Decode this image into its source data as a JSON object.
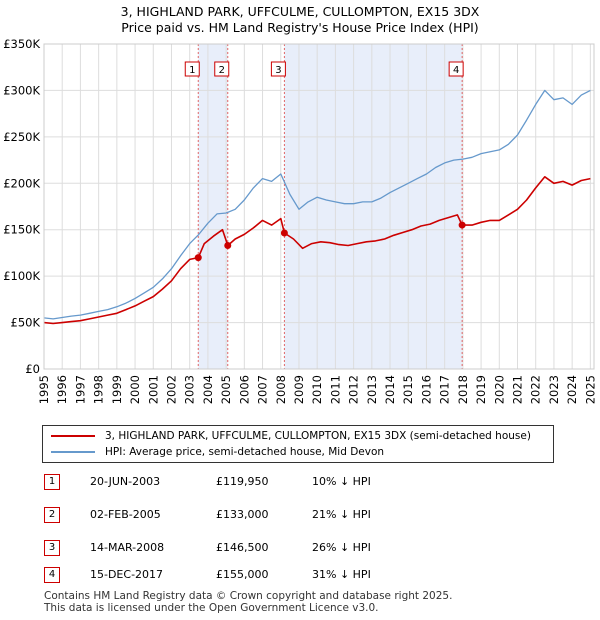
{
  "header": {
    "title_line1": "3, HIGHLAND PARK, UFFCULME, CULLOMPTON, EX15 3DX",
    "title_line2": "Price paid vs. HM Land Registry's House Price Index (HPI)"
  },
  "colors": {
    "red": "#cc0000",
    "blue": "#6699cc",
    "shade": "#e8eefa",
    "grid": "#dddddd",
    "vline": "#e06666"
  },
  "legend": {
    "property_label": "3, HIGHLAND PARK, UFFCULME, CULLOMPTON, EX15 3DX (semi-detached house)",
    "hpi_label": "HPI: Average price, semi-detached house, Mid Devon"
  },
  "transactions": [
    {
      "num": "1",
      "date": "20-JUN-2003",
      "price": "£119,950",
      "hpi_diff": "10% ↓ HPI"
    },
    {
      "num": "2",
      "date": "02-FEB-2005",
      "price": "£133,000",
      "hpi_diff": "21% ↓ HPI"
    },
    {
      "num": "3",
      "date": "14-MAR-2008",
      "price": "£146,500",
      "hpi_diff": "26% ↓ HPI"
    },
    {
      "num": "4",
      "date": "15-DEC-2017",
      "price": "£155,000",
      "hpi_diff": "31% ↓ HPI"
    }
  ],
  "footer": {
    "line1": "Contains HM Land Registry data © Crown copyright and database right 2025.",
    "line2": "This data is licensed under the Open Government Licence v3.0."
  },
  "chart_data": {
    "type": "line",
    "title": "3, HIGHLAND PARK, UFFCULME, CULLOMPTON, EX15 3DX — Price paid vs. HM Land Registry's House Price Index (HPI)",
    "xlabel": "",
    "ylabel": "",
    "xlim": [
      1995,
      2025.2
    ],
    "ylim": [
      0,
      350000
    ],
    "y_ticks": [
      0,
      50000,
      100000,
      150000,
      200000,
      250000,
      300000,
      350000
    ],
    "y_tick_labels": [
      "£0",
      "£50K",
      "£100K",
      "£150K",
      "£200K",
      "£250K",
      "£300K",
      "£350K"
    ],
    "x_ticks": [
      1995,
      1996,
      1997,
      1998,
      1999,
      2000,
      2001,
      2002,
      2003,
      2004,
      2005,
      2006,
      2007,
      2008,
      2009,
      2010,
      2011,
      2012,
      2013,
      2014,
      2015,
      2016,
      2017,
      2018,
      2019,
      2020,
      2021,
      2022,
      2023,
      2024,
      2025
    ],
    "x_tick_labels": [
      "1995",
      "1996",
      "1997",
      "1998",
      "1999",
      "2000",
      "2001",
      "2002",
      "2003",
      "2004",
      "2005",
      "2006",
      "2007",
      "2008",
      "2009",
      "2010",
      "2011",
      "2012",
      "2013",
      "2014",
      "2015",
      "2016",
      "2017",
      "2018",
      "2019",
      "2020",
      "2021",
      "2022",
      "2023",
      "2024",
      "2025"
    ],
    "shaded_periods": [
      [
        2003.47,
        2005.09
      ],
      [
        2008.2,
        2017.96
      ]
    ],
    "series": [
      {
        "name": "HPI: Average price, semi-detached house, Mid Devon",
        "color": "#6699cc",
        "x": [
          1995,
          1995.5,
          1996,
          1996.5,
          1997,
          1997.5,
          1998,
          1998.5,
          1999,
          1999.5,
          2000,
          2000.5,
          2001,
          2001.5,
          2002,
          2002.5,
          2003,
          2003.5,
          2004,
          2004.5,
          2005,
          2005.5,
          2006,
          2006.5,
          2007,
          2007.5,
          2008,
          2008.5,
          2009,
          2009.5,
          2010,
          2010.5,
          2011,
          2011.5,
          2012,
          2012.5,
          2013,
          2013.5,
          2014,
          2014.5,
          2015,
          2015.5,
          2016,
          2016.5,
          2017,
          2017.5,
          2018,
          2018.5,
          2019,
          2019.5,
          2020,
          2020.5,
          2021,
          2021.5,
          2022,
          2022.5,
          2023,
          2023.5,
          2024,
          2024.5,
          2025
        ],
        "values": [
          55000,
          54000,
          55500,
          57000,
          58000,
          60000,
          62000,
          64000,
          67000,
          71000,
          76000,
          82000,
          88000,
          97000,
          108000,
          122000,
          135000,
          145000,
          157000,
          167000,
          168000,
          172000,
          182000,
          195000,
          205000,
          202000,
          210000,
          188000,
          172000,
          180000,
          185000,
          182000,
          180000,
          178000,
          178000,
          180000,
          180000,
          184000,
          190000,
          195000,
          200000,
          205000,
          210000,
          217000,
          222000,
          225000,
          226000,
          228000,
          232000,
          234000,
          236000,
          242000,
          252000,
          268000,
          285000,
          300000,
          290000,
          292000,
          285000,
          295000,
          300000
        ]
      },
      {
        "name": "3, HIGHLAND PARK, UFFCULME, CULLOMPTON, EX15 3DX (semi-detached house)",
        "color": "#cc0000",
        "x": [
          1995,
          1995.5,
          1996,
          1996.5,
          1997,
          1997.5,
          1998,
          1998.5,
          1999,
          1999.5,
          2000,
          2000.5,
          2001,
          2001.5,
          2002,
          2002.5,
          2003,
          2003.47,
          2003.8,
          2004.3,
          2004.8,
          2005.09,
          2005.5,
          2006,
          2006.5,
          2007,
          2007.5,
          2008,
          2008.2,
          2008.7,
          2009.2,
          2009.7,
          2010.2,
          2010.7,
          2011.2,
          2011.7,
          2012.2,
          2012.7,
          2013.2,
          2013.7,
          2014.2,
          2014.7,
          2015.2,
          2015.7,
          2016.2,
          2016.7,
          2017.2,
          2017.7,
          2017.96,
          2018.5,
          2019,
          2019.5,
          2020,
          2020.5,
          2021,
          2021.5,
          2022,
          2022.5,
          2023,
          2023.5,
          2024,
          2024.5,
          2025
        ],
        "values": [
          50000,
          49000,
          50000,
          51000,
          52000,
          54000,
          56000,
          58000,
          60000,
          64000,
          68000,
          73000,
          78000,
          86000,
          95000,
          108000,
          118000,
          119950,
          135000,
          143000,
          150000,
          133000,
          140000,
          145000,
          152000,
          160000,
          155000,
          162000,
          146500,
          140000,
          130000,
          135000,
          137000,
          136000,
          134000,
          133000,
          135000,
          137000,
          138000,
          140000,
          144000,
          147000,
          150000,
          154000,
          156000,
          160000,
          163000,
          166000,
          155000,
          155000,
          158000,
          160000,
          160000,
          166000,
          172000,
          182000,
          195000,
          207000,
          200000,
          202000,
          198000,
          203000,
          205000
        ]
      }
    ],
    "sales": [
      {
        "label": "1",
        "x": 2003.47,
        "y": 119950
      },
      {
        "label": "2",
        "x": 2005.09,
        "y": 133000
      },
      {
        "label": "3",
        "x": 2008.2,
        "y": 146500
      },
      {
        "label": "4",
        "x": 2017.96,
        "y": 155000
      }
    ]
  }
}
